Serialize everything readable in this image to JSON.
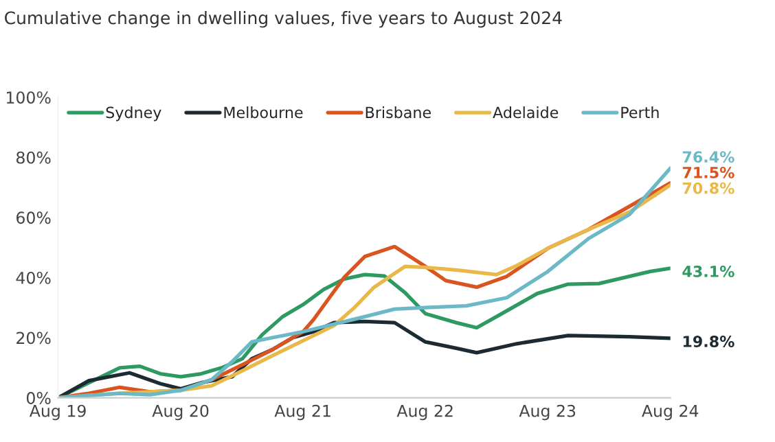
{
  "chart_data": {
    "type": "line",
    "title": "Cumulative change in dwelling values, five years to August 2024",
    "xlim": [
      "2019-08",
      "2024-08"
    ],
    "xticks": [
      {
        "value": "2019-08",
        "label": "Aug 19"
      },
      {
        "value": "2020-08",
        "label": "Aug 20"
      },
      {
        "value": "2021-08",
        "label": "Aug 21"
      },
      {
        "value": "2022-08",
        "label": "Aug 22"
      },
      {
        "value": "2023-08",
        "label": "Aug 23"
      },
      {
        "value": "2024-08",
        "label": "Aug 24"
      }
    ],
    "ylim": [
      0,
      100
    ],
    "yticks": [
      {
        "value": 0,
        "label": "0%"
      },
      {
        "value": 20,
        "label": "20%"
      },
      {
        "value": 40,
        "label": "40%"
      },
      {
        "value": 60,
        "label": "60%"
      },
      {
        "value": 80,
        "label": "80%"
      },
      {
        "value": 100,
        "label": "100%"
      }
    ],
    "grid": false,
    "legend": "top",
    "marker": "none",
    "line_style": "solid",
    "series": [
      {
        "name": "Sydney",
        "color": "#2e9a62",
        "x": [
          "2019-08",
          "2019-11",
          "2020-02",
          "2020-04",
          "2020-06",
          "2020-08",
          "2020-10",
          "2020-12",
          "2021-02",
          "2021-04",
          "2021-06",
          "2021-08",
          "2021-10",
          "2021-12",
          "2022-02",
          "2022-04",
          "2022-06",
          "2022-08",
          "2022-11",
          "2023-01",
          "2023-03",
          "2023-07",
          "2023-10",
          "2024-01",
          "2024-04",
          "2024-06",
          "2024-08"
        ],
        "values": [
          0,
          5,
          10,
          10.5,
          8,
          7,
          8,
          10,
          13,
          21,
          27,
          31,
          36,
          39.5,
          41,
          40.5,
          35,
          28,
          25,
          23.3,
          27,
          34.7,
          37.8,
          38,
          40.4,
          42,
          43.1
        ]
      },
      {
        "name": "Melbourne",
        "color": "#1c2a33",
        "x": [
          "2019-08",
          "2019-11",
          "2020-03",
          "2020-06",
          "2020-08",
          "2020-10",
          "2021-01",
          "2021-03",
          "2021-05",
          "2021-07",
          "2021-09",
          "2021-11",
          "2022-02",
          "2022-05",
          "2022-08",
          "2022-11",
          "2023-01",
          "2023-05",
          "2023-10",
          "2024-04",
          "2024-08"
        ],
        "values": [
          0,
          5.7,
          8.3,
          4.7,
          3,
          5,
          7,
          13,
          16,
          20,
          22,
          25,
          25.4,
          25,
          18.6,
          16.5,
          15,
          18,
          20.7,
          20.3,
          19.8
        ]
      },
      {
        "name": "Brisbane",
        "color": "#d9541e",
        "x": [
          "2019-08",
          "2019-11",
          "2020-02",
          "2020-05",
          "2020-08",
          "2020-11",
          "2021-02",
          "2021-05",
          "2021-08",
          "2021-09",
          "2021-12",
          "2022-02",
          "2022-05",
          "2022-08",
          "2022-10",
          "2023-01",
          "2023-04",
          "2023-08",
          "2023-12",
          "2024-04",
          "2024-08"
        ],
        "values": [
          0,
          1.5,
          3.5,
          2,
          2.5,
          6,
          11,
          16,
          22,
          26,
          40,
          47,
          50.3,
          43.7,
          39,
          36.8,
          40.4,
          49.7,
          56,
          63.7,
          71.5
        ]
      },
      {
        "name": "Adelaide",
        "color": "#e8b94a",
        "x": [
          "2019-08",
          "2019-11",
          "2020-02",
          "2020-05",
          "2020-08",
          "2020-11",
          "2021-02",
          "2021-05",
          "2021-08",
          "2021-11",
          "2022-01",
          "2022-03",
          "2022-06",
          "2022-08",
          "2022-11",
          "2023-03",
          "2023-05",
          "2023-08",
          "2023-12",
          "2024-04",
          "2024-08"
        ],
        "values": [
          0,
          0.8,
          1.5,
          2,
          2.5,
          4,
          9,
          14,
          19,
          24,
          30,
          36.8,
          43.7,
          43.4,
          42.5,
          41,
          44,
          49.7,
          56,
          61.8,
          70.8
        ]
      },
      {
        "name": "Perth",
        "color": "#6bb8c6",
        "x": [
          "2019-08",
          "2019-11",
          "2020-02",
          "2020-05",
          "2020-08",
          "2020-11",
          "2021-01",
          "2021-03",
          "2021-05",
          "2021-08",
          "2021-11",
          "2022-02",
          "2022-05",
          "2022-08",
          "2022-12",
          "2023-04",
          "2023-08",
          "2023-12",
          "2024-04",
          "2024-08"
        ],
        "values": [
          0,
          0.8,
          1.5,
          1,
          2.5,
          6,
          12,
          18.6,
          20,
          22,
          24.5,
          27,
          29.5,
          30,
          30.6,
          33.3,
          42,
          53,
          61,
          76.4
        ]
      }
    ],
    "annotations": [
      {
        "text": "43.1%",
        "x": "2024-08",
        "y": 43.1
      },
      {
        "text": "19.8%",
        "x": "2024-08",
        "y": 19.8
      },
      {
        "text": "71.5%",
        "x": "2024-08",
        "y": 71.5
      },
      {
        "text": "70.8%",
        "x": "2024-08",
        "y": 70.8
      },
      {
        "text": "76.4%",
        "x": "2024-08",
        "y": 76.4
      }
    ]
  }
}
